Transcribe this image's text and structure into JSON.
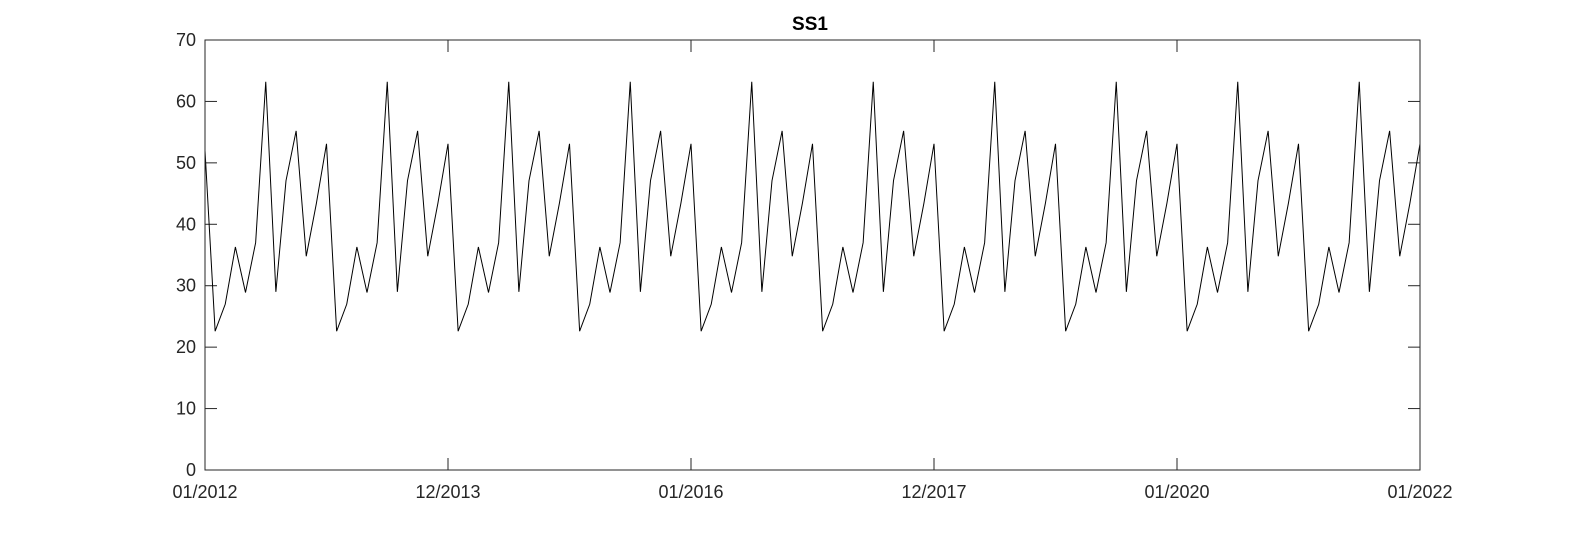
{
  "chart_data": {
    "type": "line",
    "title": "SS1",
    "xlabel": "",
    "ylabel": "",
    "ylim": [
      0,
      70
    ],
    "yticks": [
      0,
      10,
      20,
      30,
      40,
      50,
      60,
      70
    ],
    "xlim": [
      "01/2012",
      "01/2022"
    ],
    "xtick_labels": [
      "01/2012",
      "12/2013",
      "01/2016",
      "12/2017",
      "01/2020",
      "01/2022"
    ],
    "grid": false,
    "line_color": "#000000",
    "x_frequency": "monthly",
    "series": [
      {
        "values": [
          52,
          22.6,
          27,
          36.3,
          28.9,
          37,
          63.2,
          29,
          47.1,
          55.2,
          34.8,
          43.4,
          53.1,
          22.6,
          27,
          36.3,
          28.9,
          37,
          63.2,
          29,
          47.1,
          55.2,
          34.8,
          43.4,
          53.1,
          22.6,
          27,
          36.3,
          28.9,
          37,
          63.2,
          29,
          47.1,
          55.2,
          34.8,
          43.4,
          53.1,
          22.6,
          27,
          36.3,
          28.9,
          37,
          63.2,
          29,
          47.1,
          55.2,
          34.8,
          43.4,
          53.1,
          22.6,
          27,
          36.3,
          28.9,
          37,
          63.2,
          29,
          47.1,
          55.2,
          34.8,
          43.4,
          53.1,
          22.6,
          27,
          36.3,
          28.9,
          37,
          63.2,
          29,
          47.1,
          55.2,
          34.8,
          43.4,
          53.1,
          22.6,
          27,
          36.3,
          28.9,
          37,
          63.2,
          29,
          47.1,
          55.2,
          34.8,
          43.4,
          53.1,
          22.6,
          27,
          36.3,
          28.9,
          37,
          63.2,
          29,
          47.1,
          55.2,
          34.8,
          43.4,
          53.1,
          22.6,
          27,
          36.3,
          28.9,
          37,
          63.2,
          29,
          47.1,
          55.2,
          34.8,
          43.4,
          53.1,
          22.6,
          27,
          36.3,
          28.9,
          37,
          63.2,
          29,
          47.1,
          55.2,
          34.8,
          43.4,
          53.1
        ]
      }
    ]
  }
}
